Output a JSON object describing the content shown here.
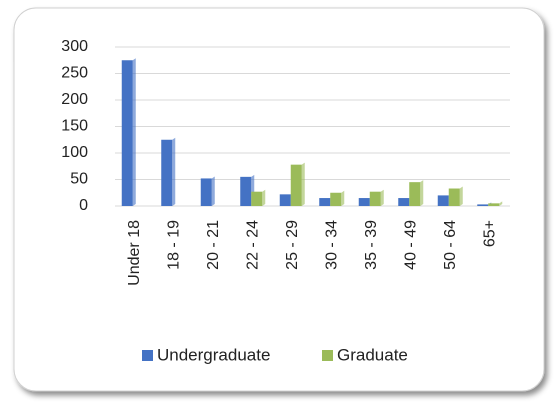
{
  "chart_data": {
    "type": "bar",
    "categories": [
      "Under 18",
      "18 - 19",
      "20 - 21",
      "22 - 24",
      "25 - 29",
      "30 - 34",
      "35 - 39",
      "40 - 49",
      "50 - 64",
      "65+"
    ],
    "series": [
      {
        "name": "Undergraduate",
        "color": "#4472c4",
        "values": [
          275,
          125,
          52,
          55,
          22,
          15,
          15,
          15,
          20,
          3
        ]
      },
      {
        "name": "Graduate",
        "color": "#9bbb59",
        "values": [
          0,
          0,
          0,
          27,
          78,
          25,
          27,
          45,
          33,
          5
        ]
      }
    ],
    "ylim": [
      0,
      300
    ],
    "yticks": [
      0,
      50,
      100,
      150,
      200,
      250,
      300
    ],
    "grid": true,
    "legend": "bottom"
  }
}
